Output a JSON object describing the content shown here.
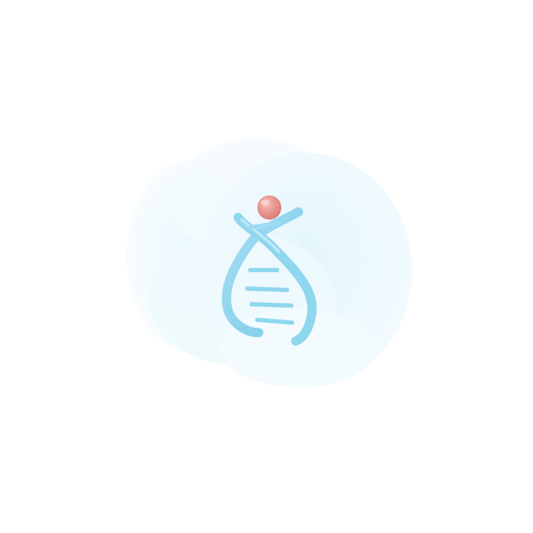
{
  "illustration": {
    "icon": "dna-helix-icon",
    "accent_color": "#8fd6ef",
    "accent_dark": "#6cc3e6",
    "ball_color": "#e9968f",
    "blob_color": "#e9f8fd"
  }
}
